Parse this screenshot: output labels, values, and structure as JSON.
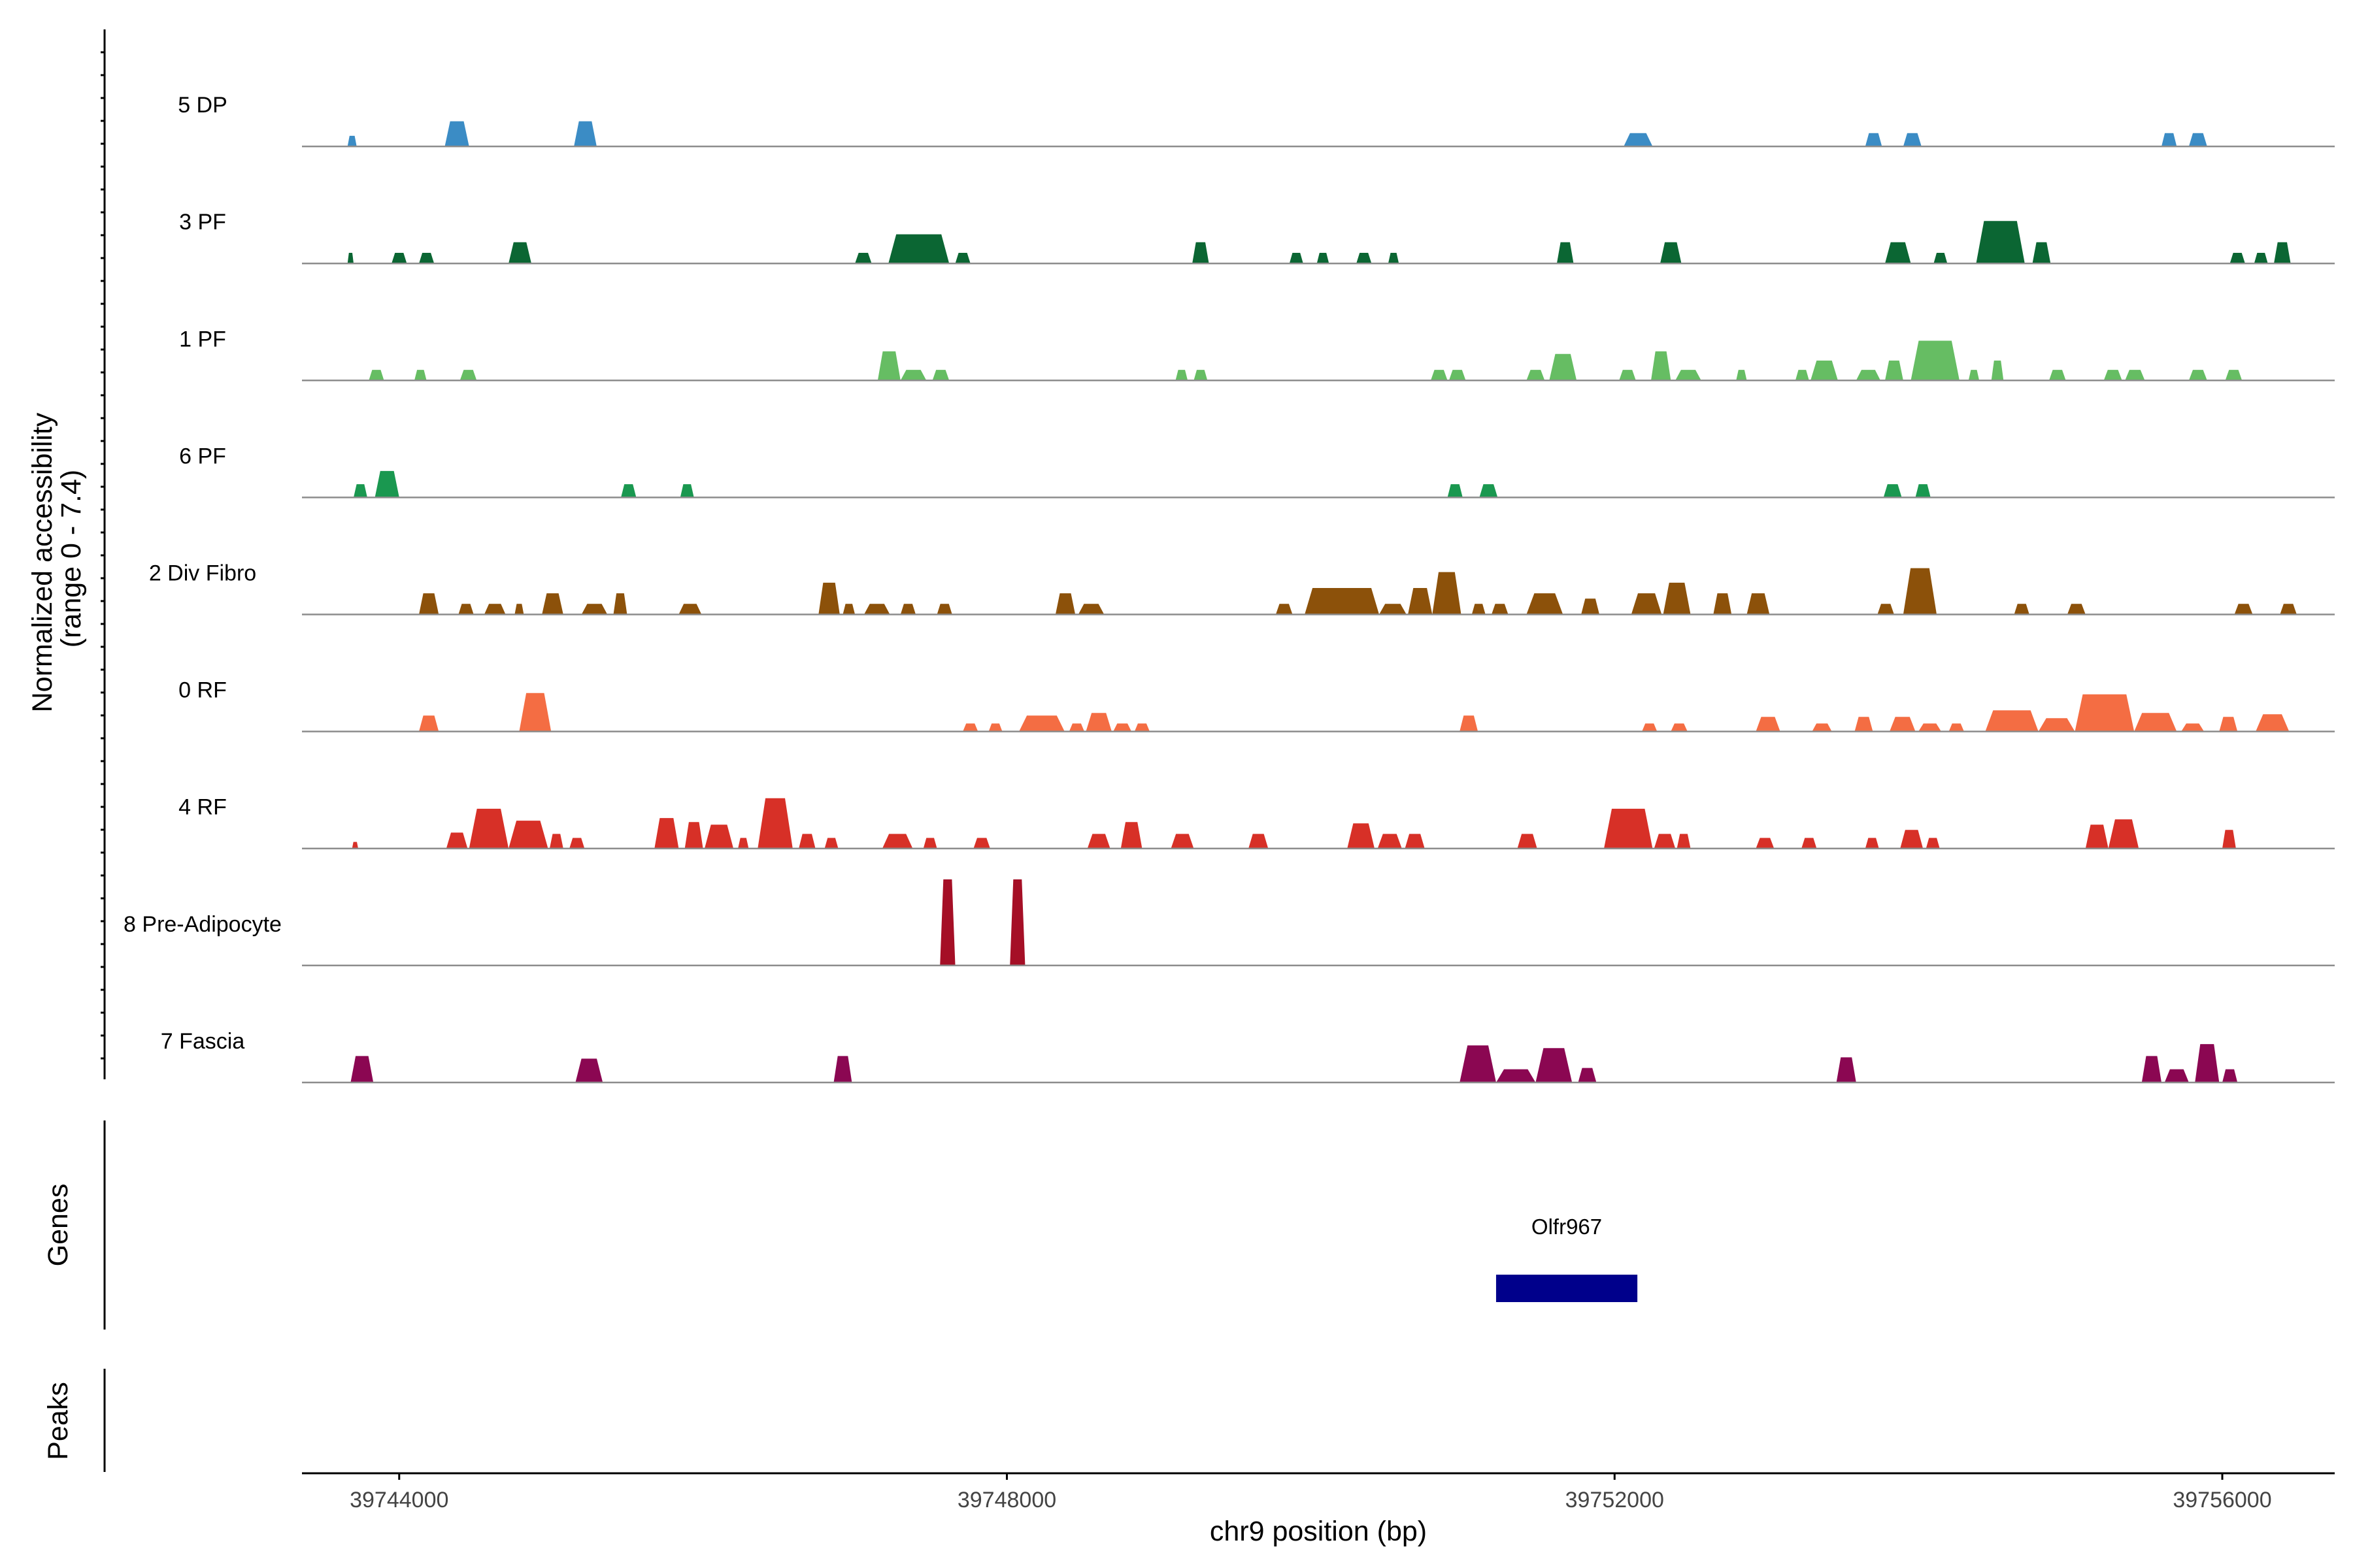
{
  "chart_data": {
    "type": "area",
    "ylabel": "Normalized accessibility",
    "ylabel_range": "(range 0 - 7.4)",
    "ylim": [
      0,
      7.4
    ],
    "xlabel": "chr9 position (bp)",
    "xlim": [
      39743360,
      39756740
    ],
    "xticks": [
      39744000,
      39748000,
      39752000,
      39756000
    ],
    "xtick_labels": [
      "39744000",
      "39748000",
      "39752000",
      "39756000"
    ],
    "genes_title": "Genes",
    "peaks_title": "Peaks",
    "genes": [
      {
        "name": "Olfr967",
        "start": 39751220,
        "end": 39752150,
        "color": "#00008b"
      }
    ],
    "series": [
      {
        "name": "5 DP",
        "color": "#3b8cc5",
        "peaks": [
          [
            39743660,
            39743720,
            0.8
          ],
          [
            39744300,
            39744460,
            1.9
          ],
          [
            39745150,
            39745300,
            1.9
          ],
          [
            39752060,
            39752250,
            1.0
          ],
          [
            39753650,
            39753760,
            1.0
          ],
          [
            39753900,
            39754020,
            1.0
          ],
          [
            39755600,
            39755700,
            1.0
          ],
          [
            39755780,
            39755900,
            1.0
          ]
        ]
      },
      {
        "name": "3 PF",
        "color": "#0b6633",
        "peaks": [
          [
            39743660,
            39743700,
            0.8
          ],
          [
            39743950,
            39744050,
            0.8
          ],
          [
            39744130,
            39744230,
            0.8
          ],
          [
            39744720,
            39744870,
            1.6
          ],
          [
            39747000,
            39747110,
            0.8
          ],
          [
            39747220,
            39747620,
            2.2
          ],
          [
            39747660,
            39747760,
            0.8
          ],
          [
            39749220,
            39749330,
            1.6
          ],
          [
            39749860,
            39749950,
            0.8
          ],
          [
            39750040,
            39750120,
            0.8
          ],
          [
            39750300,
            39750400,
            0.8
          ],
          [
            39750510,
            39750580,
            0.8
          ],
          [
            39751620,
            39751730,
            1.6
          ],
          [
            39752300,
            39752440,
            1.6
          ],
          [
            39753780,
            39753950,
            1.6
          ],
          [
            39754100,
            39754190,
            0.8
          ],
          [
            39754380,
            39754700,
            3.2
          ],
          [
            39754750,
            39754870,
            1.6
          ],
          [
            39756050,
            39756150,
            0.8
          ],
          [
            39756210,
            39756300,
            0.8
          ],
          [
            39756340,
            39756450,
            1.6
          ]
        ]
      },
      {
        "name": "1 PF",
        "color": "#66bd63",
        "peaks": [
          [
            39743800,
            39743900,
            0.8
          ],
          [
            39744100,
            39744180,
            0.8
          ],
          [
            39744400,
            39744510,
            0.8
          ],
          [
            39747150,
            39747300,
            2.2
          ],
          [
            39747300,
            39747470,
            0.8
          ],
          [
            39747510,
            39747620,
            0.8
          ],
          [
            39749110,
            39749190,
            0.8
          ],
          [
            39749230,
            39749320,
            0.8
          ],
          [
            39750790,
            39750900,
            0.8
          ],
          [
            39750910,
            39751020,
            0.8
          ],
          [
            39751420,
            39751540,
            0.8
          ],
          [
            39751570,
            39751750,
            2.0
          ],
          [
            39752030,
            39752140,
            0.8
          ],
          [
            39752240,
            39752370,
            2.2
          ],
          [
            39752400,
            39752570,
            0.8
          ],
          [
            39752800,
            39752870,
            0.8
          ],
          [
            39753190,
            39753280,
            0.8
          ],
          [
            39753290,
            39753470,
            1.5
          ],
          [
            39753590,
            39753750,
            0.8
          ],
          [
            39753780,
            39753900,
            1.5
          ],
          [
            39753950,
            39754270,
            3.0
          ],
          [
            39754330,
            39754400,
            0.8
          ],
          [
            39754480,
            39754560,
            1.5
          ],
          [
            39754860,
            39754970,
            0.8
          ],
          [
            39755220,
            39755340,
            0.8
          ],
          [
            39755360,
            39755490,
            0.8
          ],
          [
            39755780,
            39755900,
            0.8
          ],
          [
            39756020,
            39756130,
            0.8
          ]
        ]
      },
      {
        "name": "6 PF",
        "color": "#1a9850",
        "peaks": [
          [
            39743700,
            39743790,
            1.0
          ],
          [
            39743840,
            39744000,
            2.0
          ],
          [
            39745460,
            39745560,
            1.0
          ],
          [
            39745850,
            39745940,
            1.0
          ],
          [
            39750900,
            39751000,
            1.0
          ],
          [
            39751110,
            39751230,
            1.0
          ],
          [
            39753770,
            39753890,
            1.0
          ],
          [
            39753980,
            39754080,
            1.0
          ]
        ]
      },
      {
        "name": "2 Div Fibro",
        "color": "#8c510a",
        "peaks": [
          [
            39744130,
            39744260,
            1.6
          ],
          [
            39744390,
            39744490,
            0.8
          ],
          [
            39744560,
            39744700,
            0.8
          ],
          [
            39744760,
            39744820,
            0.8
          ],
          [
            39744940,
            39745080,
            1.6
          ],
          [
            39745200,
            39745370,
            0.8
          ],
          [
            39745410,
            39745500,
            1.6
          ],
          [
            39745840,
            39745990,
            0.8
          ],
          [
            39746760,
            39746900,
            2.4
          ],
          [
            39746920,
            39747000,
            0.8
          ],
          [
            39747060,
            39747230,
            0.8
          ],
          [
            39747300,
            39747400,
            0.8
          ],
          [
            39747540,
            39747640,
            0.8
          ],
          [
            39748320,
            39748450,
            1.6
          ],
          [
            39748470,
            39748640,
            0.8
          ],
          [
            39749770,
            39749880,
            0.8
          ],
          [
            39749960,
            39750450,
            2.0
          ],
          [
            39750450,
            39750630,
            0.8
          ],
          [
            39750640,
            39750800,
            2.0
          ],
          [
            39750800,
            39750990,
            3.2
          ],
          [
            39751060,
            39751150,
            0.8
          ],
          [
            39751190,
            39751300,
            0.8
          ],
          [
            39751420,
            39751660,
            1.6
          ],
          [
            39751780,
            39751900,
            1.2
          ],
          [
            39752110,
            39752310,
            1.6
          ],
          [
            39752320,
            39752500,
            2.4
          ],
          [
            39752650,
            39752770,
            1.6
          ],
          [
            39752870,
            39753020,
            1.6
          ],
          [
            39753730,
            39753840,
            0.8
          ],
          [
            39753900,
            39754120,
            3.5
          ],
          [
            39754630,
            39754730,
            0.8
          ],
          [
            39754980,
            39755100,
            0.8
          ],
          [
            39756080,
            39756200,
            0.8
          ],
          [
            39756380,
            39756490,
            0.8
          ]
        ]
      },
      {
        "name": "0 RF",
        "color": "#f46d43",
        "peaks": [
          [
            39744130,
            39744260,
            1.2
          ],
          [
            39744790,
            39745000,
            2.9
          ],
          [
            39747710,
            39747810,
            0.6
          ],
          [
            39747880,
            39747970,
            0.6
          ],
          [
            39748080,
            39748380,
            1.2
          ],
          [
            39748410,
            39748510,
            0.6
          ],
          [
            39748520,
            39748690,
            1.4
          ],
          [
            39748700,
            39748820,
            0.6
          ],
          [
            39748840,
            39748940,
            0.6
          ],
          [
            39750980,
            39751100,
            1.2
          ],
          [
            39752180,
            39752280,
            0.6
          ],
          [
            39752370,
            39752480,
            0.6
          ],
          [
            39752930,
            39753090,
            1.1
          ],
          [
            39753300,
            39753430,
            0.6
          ],
          [
            39753580,
            39753700,
            1.1
          ],
          [
            39753810,
            39753980,
            1.1
          ],
          [
            39754000,
            39754150,
            0.6
          ],
          [
            39754200,
            39754300,
            0.6
          ],
          [
            39754440,
            39754790,
            1.6
          ],
          [
            39754790,
            39755030,
            1.0
          ],
          [
            39755030,
            39755420,
            2.8
          ],
          [
            39755420,
            39755700,
            1.4
          ],
          [
            39755730,
            39755880,
            0.6
          ],
          [
            39755980,
            39756100,
            1.1
          ],
          [
            39756220,
            39756440,
            1.3
          ]
        ]
      },
      {
        "name": "4 RF",
        "color": "#d73027",
        "peaks": [
          [
            39743690,
            39743730,
            0.5
          ],
          [
            39744310,
            39744450,
            1.2
          ],
          [
            39744460,
            39744720,
            3.0
          ],
          [
            39744720,
            39744980,
            2.1
          ],
          [
            39744990,
            39745080,
            1.1
          ],
          [
            39745120,
            39745220,
            0.8
          ],
          [
            39745680,
            39745840,
            2.3
          ],
          [
            39745880,
            39746000,
            2.0
          ],
          [
            39746010,
            39746200,
            1.8
          ],
          [
            39746230,
            39746300,
            0.8
          ],
          [
            39746360,
            39746590,
            3.8
          ],
          [
            39746630,
            39746740,
            1.1
          ],
          [
            39746800,
            39746890,
            0.8
          ],
          [
            39747180,
            39747380,
            1.1
          ],
          [
            39747450,
            39747540,
            0.8
          ],
          [
            39747780,
            39747890,
            0.8
          ],
          [
            39748530,
            39748680,
            1.1
          ],
          [
            39748750,
            39748890,
            2.0
          ],
          [
            39749080,
            39749230,
            1.1
          ],
          [
            39749590,
            39749720,
            1.1
          ],
          [
            39750240,
            39750420,
            1.9
          ],
          [
            39750440,
            39750600,
            1.1
          ],
          [
            39750620,
            39750750,
            1.1
          ],
          [
            39751360,
            39751490,
            1.1
          ],
          [
            39751930,
            39752250,
            3.0
          ],
          [
            39752260,
            39752400,
            1.1
          ],
          [
            39752410,
            39752500,
            1.1
          ],
          [
            39752930,
            39753050,
            0.8
          ],
          [
            39753230,
            39753330,
            0.8
          ],
          [
            39753650,
            39753740,
            0.8
          ],
          [
            39753880,
            39754030,
            1.4
          ],
          [
            39754050,
            39754140,
            0.8
          ],
          [
            39755100,
            39755250,
            1.8
          ],
          [
            39755250,
            39755450,
            2.2
          ],
          [
            39756000,
            39756090,
            1.4
          ]
        ]
      },
      {
        "name": "8 Pre-Adipocyte",
        "color": "#a50f26",
        "peaks": [
          [
            39747560,
            39747660,
            6.5
          ],
          [
            39748020,
            39748120,
            6.5
          ]
        ]
      },
      {
        "name": "7 Fascia",
        "color": "#8b0752",
        "peaks": [
          [
            39743680,
            39743830,
            2.0
          ],
          [
            39745160,
            39745340,
            1.8
          ],
          [
            39746860,
            39746980,
            2.0
          ],
          [
            39750980,
            39751220,
            2.8
          ],
          [
            39751220,
            39751480,
            1.0
          ],
          [
            39751480,
            39751720,
            2.6
          ],
          [
            39751760,
            39751880,
            1.1
          ],
          [
            39753460,
            39753590,
            1.9
          ],
          [
            39755470,
            39755600,
            2.0
          ],
          [
            39755620,
            39755780,
            1.0
          ],
          [
            39755820,
            39755980,
            2.9
          ],
          [
            39756000,
            39756100,
            1.0
          ]
        ]
      }
    ]
  }
}
